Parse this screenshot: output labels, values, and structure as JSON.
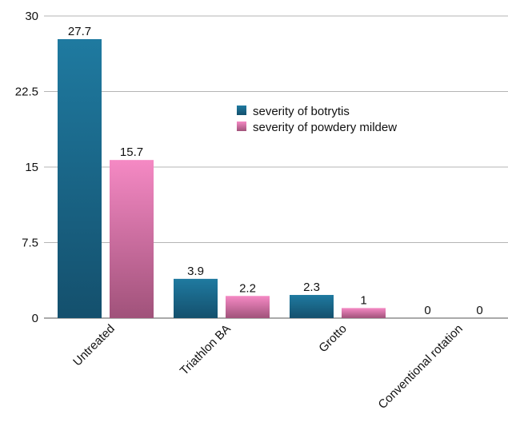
{
  "chart_data": {
    "type": "bar",
    "title": "",
    "xlabel": "",
    "ylabel": "",
    "categories": [
      "Untreated",
      "Triathlon BA",
      "Grotto",
      "Conventional rotation"
    ],
    "series": [
      {
        "name": "severity of botrytis",
        "values": [
          27.7,
          3.9,
          2.3,
          0
        ],
        "color": "#1e7196"
      },
      {
        "name": "severity of powdery mildew",
        "values": [
          15.7,
          2.2,
          1,
          0
        ],
        "color": "#e77fba"
      }
    ],
    "ylim": [
      0,
      30
    ],
    "yticks": [
      "0",
      "7.5",
      "15",
      "22.5",
      "30"
    ],
    "ytick_values": [
      0,
      7.5,
      15,
      22.5,
      30
    ],
    "value_labels": [
      [
        "27.7",
        "3.9",
        "2.3",
        "0"
      ],
      [
        "15.7",
        "2.2",
        "1",
        "0"
      ]
    ],
    "grid": true,
    "legend_position": "upper-right"
  }
}
